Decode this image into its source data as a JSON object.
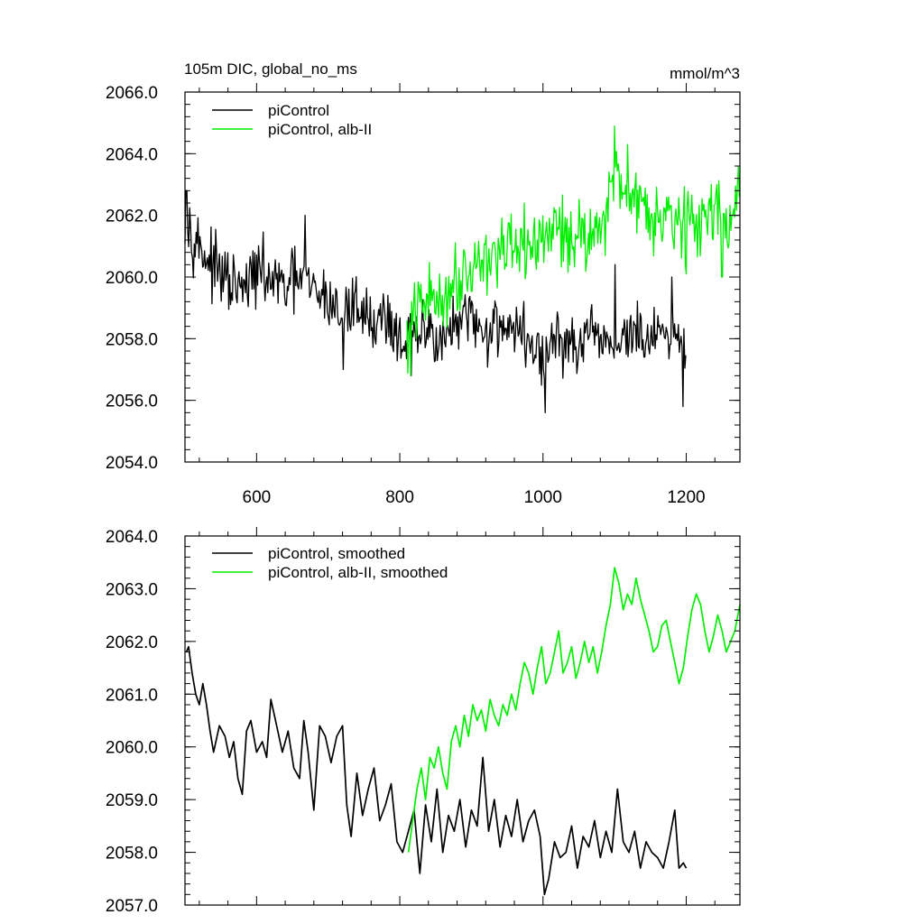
{
  "colors": {
    "control": "#000000",
    "experiment": "#00ee00",
    "axis": "#000000",
    "background": "#ffffff"
  },
  "chart_data": [
    {
      "type": "line",
      "title": "105m DIC, global_no_ms",
      "units": "mmol/m^3",
      "xlabel": "",
      "ylabel": "",
      "xlim": [
        500,
        1275
      ],
      "ylim": [
        2054,
        2066
      ],
      "x_ticks": [
        600,
        800,
        1000,
        1200
      ],
      "x_tick_labels": [
        "600",
        "800",
        "1000",
        "1200"
      ],
      "y_ticks": [
        2054,
        2056,
        2058,
        2060,
        2062,
        2064,
        2066
      ],
      "y_tick_labels": [
        "2054.0",
        "2056.0",
        "2058.0",
        "2060.0",
        "2062.0",
        "2064.0",
        "2066.0"
      ],
      "legend": {
        "placement": "top-left"
      },
      "series": [
        {
          "name": "piControl",
          "color": "#000000",
          "x": [
            500,
            520,
            540,
            560,
            580,
            600,
            620,
            640,
            660,
            680,
            700,
            720,
            740,
            760,
            780,
            800,
            820,
            840,
            860,
            880,
            900,
            920,
            940,
            960,
            980,
            1000,
            1020,
            1040,
            1060,
            1080,
            1100,
            1120,
            1140,
            1160,
            1180,
            1200
          ],
          "values": [
            2062.0,
            2061.0,
            2060.3,
            2059.8,
            2059.5,
            2060.2,
            2059.9,
            2059.6,
            2060.0,
            2059.5,
            2059.3,
            2058.7,
            2059.2,
            2058.5,
            2058.8,
            2058.0,
            2057.9,
            2058.3,
            2058.0,
            2058.4,
            2058.6,
            2058.2,
            2058.5,
            2058.4,
            2057.9,
            2057.3,
            2058.1,
            2057.6,
            2057.9,
            2058.0,
            2057.8,
            2058.2,
            2057.9,
            2058.1,
            2057.7,
            2057.8
          ],
          "noise": 0.9,
          "spikes": [
            {
              "x": 502,
              "y": 2062.8
            },
            {
              "x": 668,
              "y": 2062.0
            },
            {
              "x": 721,
              "y": 2057.0
            },
            {
              "x": 816,
              "y": 2056.8
            },
            {
              "x": 1003,
              "y": 2055.6
            },
            {
              "x": 1101,
              "y": 2060.4
            },
            {
              "x": 1180,
              "y": 2060.0
            },
            {
              "x": 1196,
              "y": 2055.8
            }
          ]
        },
        {
          "name": "piControl, alb-II",
          "color": "#00ee00",
          "x": [
            810,
            820,
            840,
            860,
            880,
            900,
            920,
            940,
            960,
            980,
            1000,
            1020,
            1040,
            1060,
            1080,
            1100,
            1120,
            1140,
            1160,
            1180,
            1200,
            1220,
            1240,
            1260,
            1275
          ],
          "values": [
            2057.8,
            2058.8,
            2059.3,
            2059.3,
            2060.0,
            2060.4,
            2060.6,
            2060.9,
            2060.7,
            2061.0,
            2061.2,
            2061.6,
            2061.3,
            2061.4,
            2061.6,
            2063.2,
            2062.9,
            2062.3,
            2062.0,
            2062.2,
            2061.7,
            2061.6,
            2062.5,
            2061.8,
            2062.7
          ],
          "noise": 1.0,
          "spikes": [
            {
              "x": 1100,
              "y": 2064.9
            },
            {
              "x": 1118,
              "y": 2064.3
            },
            {
              "x": 1200,
              "y": 2060.1
            },
            {
              "x": 1250,
              "y": 2060.0
            },
            {
              "x": 1273,
              "y": 2063.6
            },
            {
              "x": 815,
              "y": 2056.8
            }
          ]
        }
      ]
    },
    {
      "type": "line",
      "title": "",
      "units": "",
      "xlabel": "",
      "ylabel": "",
      "xlim": [
        500,
        1275
      ],
      "ylim": [
        2057,
        2064
      ],
      "x_ticks": [
        600,
        800,
        1000,
        1200
      ],
      "x_tick_labels": [],
      "y_ticks": [
        2057,
        2058,
        2059,
        2060,
        2061,
        2062,
        2063,
        2064
      ],
      "y_tick_labels": [
        "2057.0",
        "2058.0",
        "2059.0",
        "2060.0",
        "2061.0",
        "2062.0",
        "2063.0",
        "2064.0"
      ],
      "legend": {
        "placement": "top-left"
      },
      "series": [
        {
          "name": "piControl, smoothed",
          "color": "#000000",
          "x": [
            502,
            505,
            510,
            515,
            520,
            525,
            530,
            535,
            540,
            548,
            556,
            562,
            568,
            574,
            580,
            586,
            592,
            600,
            608,
            614,
            620,
            628,
            636,
            644,
            652,
            660,
            666,
            672,
            680,
            688,
            696,
            704,
            712,
            720,
            726,
            732,
            740,
            748,
            756,
            764,
            772,
            780,
            788,
            796,
            804,
            812,
            820,
            828,
            836,
            844,
            852,
            860,
            868,
            876,
            884,
            892,
            900,
            908,
            916,
            924,
            932,
            940,
            948,
            956,
            964,
            972,
            980,
            988,
            996,
            1002,
            1008,
            1016,
            1024,
            1032,
            1040,
            1048,
            1056,
            1064,
            1072,
            1080,
            1088,
            1096,
            1104,
            1112,
            1120,
            1128,
            1136,
            1144,
            1152,
            1160,
            1168,
            1176,
            1184,
            1190,
            1196,
            1200
          ],
          "values": [
            2061.8,
            2061.9,
            2061.4,
            2061.0,
            2060.8,
            2061.2,
            2060.8,
            2060.3,
            2059.9,
            2060.4,
            2060.2,
            2059.8,
            2060.1,
            2059.4,
            2059.1,
            2060.3,
            2060.5,
            2059.9,
            2060.1,
            2059.8,
            2060.9,
            2060.4,
            2059.9,
            2060.3,
            2059.6,
            2059.4,
            2060.5,
            2059.9,
            2058.8,
            2060.4,
            2060.2,
            2059.7,
            2060.2,
            2060.4,
            2058.9,
            2058.3,
            2059.5,
            2058.7,
            2059.2,
            2059.6,
            2058.6,
            2058.9,
            2059.3,
            2058.2,
            2058.0,
            2058.4,
            2058.8,
            2057.6,
            2058.9,
            2058.2,
            2059.2,
            2058.0,
            2058.7,
            2058.4,
            2059.0,
            2058.1,
            2058.8,
            2058.5,
            2059.8,
            2058.4,
            2059.0,
            2058.1,
            2058.7,
            2058.3,
            2059.0,
            2058.2,
            2058.6,
            2058.8,
            2058.3,
            2057.2,
            2057.5,
            2058.2,
            2057.9,
            2058.0,
            2058.5,
            2057.7,
            2058.3,
            2058.1,
            2058.6,
            2057.9,
            2058.4,
            2058.0,
            2059.2,
            2058.2,
            2058.0,
            2058.4,
            2057.7,
            2058.2,
            2058.0,
            2057.9,
            2057.7,
            2058.2,
            2058.8,
            2057.7,
            2057.8,
            2057.7
          ]
        },
        {
          "name": "piControl, alb-II, smoothed",
          "color": "#00ee00",
          "x": [
            812,
            818,
            824,
            830,
            836,
            842,
            848,
            854,
            860,
            866,
            872,
            878,
            884,
            890,
            896,
            902,
            908,
            914,
            920,
            926,
            932,
            938,
            944,
            950,
            956,
            962,
            968,
            974,
            980,
            986,
            992,
            998,
            1004,
            1010,
            1016,
            1022,
            1028,
            1034,
            1040,
            1046,
            1052,
            1058,
            1064,
            1070,
            1076,
            1082,
            1088,
            1094,
            1100,
            1106,
            1112,
            1118,
            1124,
            1130,
            1136,
            1142,
            1148,
            1154,
            1160,
            1166,
            1172,
            1178,
            1184,
            1190,
            1196,
            1202,
            1208,
            1214,
            1220,
            1226,
            1232,
            1238,
            1244,
            1250,
            1256,
            1262,
            1268,
            1275
          ],
          "values": [
            2058.0,
            2058.6,
            2059.2,
            2059.6,
            2059.0,
            2059.8,
            2059.6,
            2060.0,
            2059.5,
            2059.2,
            2060.1,
            2060.4,
            2060.0,
            2060.6,
            2060.2,
            2060.8,
            2060.5,
            2060.7,
            2060.3,
            2060.9,
            2060.6,
            2060.4,
            2060.8,
            2060.6,
            2061.0,
            2060.7,
            2061.2,
            2061.6,
            2061.4,
            2061.0,
            2061.5,
            2061.9,
            2061.2,
            2061.4,
            2061.8,
            2062.2,
            2061.4,
            2061.6,
            2061.9,
            2061.3,
            2061.6,
            2062.0,
            2061.6,
            2061.9,
            2061.4,
            2061.8,
            2062.3,
            2062.7,
            2063.4,
            2063.1,
            2062.6,
            2062.9,
            2062.7,
            2063.2,
            2062.8,
            2062.5,
            2062.2,
            2061.8,
            2061.9,
            2062.3,
            2062.4,
            2062.0,
            2061.6,
            2061.2,
            2061.5,
            2062.1,
            2062.6,
            2062.9,
            2062.7,
            2062.2,
            2061.8,
            2062.1,
            2062.5,
            2062.2,
            2061.8,
            2062.0,
            2062.2,
            2062.7
          ]
        }
      ]
    }
  ]
}
